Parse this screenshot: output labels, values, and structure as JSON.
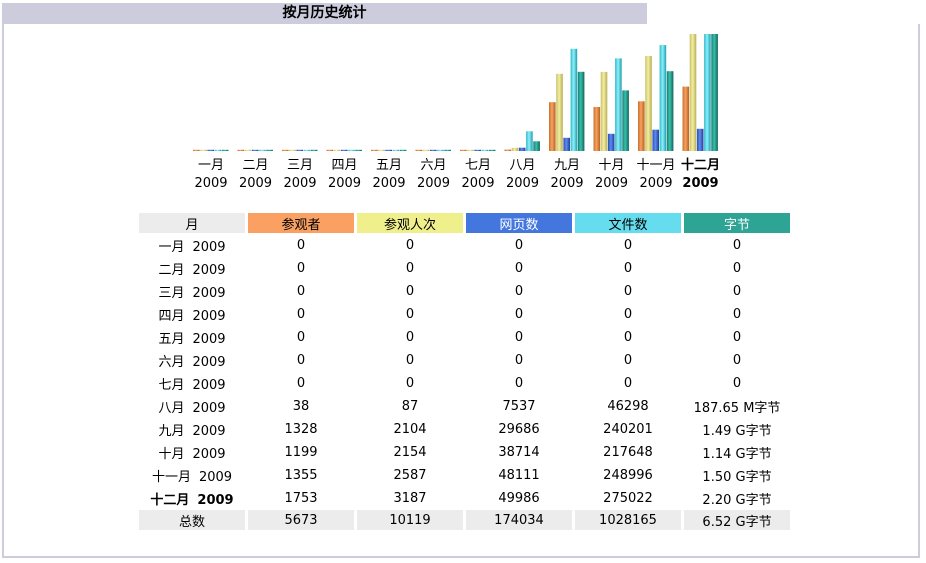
{
  "title": "按月历史统计",
  "colors": {
    "visitors": "#f9a062",
    "visits": "#eff08c",
    "pages": "#4477dd",
    "files": "#66ddee",
    "bytes": "#2ea495"
  },
  "table": {
    "headers": [
      "月",
      "参观者",
      "参观人次",
      "网页数",
      "文件数",
      "字节"
    ],
    "rows": [
      {
        "month": "一月",
        "year": "2009",
        "visitors": "0",
        "visits": "0",
        "pages": "0",
        "files": "0",
        "bytes": "0"
      },
      {
        "month": "二月",
        "year": "2009",
        "visitors": "0",
        "visits": "0",
        "pages": "0",
        "files": "0",
        "bytes": "0"
      },
      {
        "month": "三月",
        "year": "2009",
        "visitors": "0",
        "visits": "0",
        "pages": "0",
        "files": "0",
        "bytes": "0"
      },
      {
        "month": "四月",
        "year": "2009",
        "visitors": "0",
        "visits": "0",
        "pages": "0",
        "files": "0",
        "bytes": "0"
      },
      {
        "month": "五月",
        "year": "2009",
        "visitors": "0",
        "visits": "0",
        "pages": "0",
        "files": "0",
        "bytes": "0"
      },
      {
        "month": "六月",
        "year": "2009",
        "visitors": "0",
        "visits": "0",
        "pages": "0",
        "files": "0",
        "bytes": "0"
      },
      {
        "month": "七月",
        "year": "2009",
        "visitors": "0",
        "visits": "0",
        "pages": "0",
        "files": "0",
        "bytes": "0"
      },
      {
        "month": "八月",
        "year": "2009",
        "visitors": "38",
        "visits": "87",
        "pages": "7537",
        "files": "46298",
        "bytes": "187.65 M字节"
      },
      {
        "month": "九月",
        "year": "2009",
        "visitors": "1328",
        "visits": "2104",
        "pages": "29686",
        "files": "240201",
        "bytes": "1.49 G字节"
      },
      {
        "month": "十月",
        "year": "2009",
        "visitors": "1199",
        "visits": "2154",
        "pages": "38714",
        "files": "217648",
        "bytes": "1.14 G字节"
      },
      {
        "month": "十一月",
        "year": "2009",
        "visitors": "1355",
        "visits": "2587",
        "pages": "48111",
        "files": "248996",
        "bytes": "1.50 G字节"
      },
      {
        "month": "十二月",
        "year": "2009",
        "visitors": "1753",
        "visits": "3187",
        "pages": "49986",
        "files": "275022",
        "bytes": "2.20 G字节",
        "current": true
      }
    ],
    "total": {
      "label": "总数",
      "visitors": "5673",
      "visits": "10119",
      "pages": "174034",
      "files": "1028165",
      "bytes": "6.52 G字节"
    }
  },
  "chart_data": {
    "type": "bar",
    "categories": [
      "一月",
      "二月",
      "三月",
      "四月",
      "五月",
      "六月",
      "七月",
      "八月",
      "九月",
      "十月",
      "十一月",
      "十二月"
    ],
    "category_years": [
      "2009",
      "2009",
      "2009",
      "2009",
      "2009",
      "2009",
      "2009",
      "2009",
      "2009",
      "2009",
      "2009",
      "2009"
    ],
    "highlight_index": 11,
    "groups": [
      {
        "name": "visitors-visits-pages",
        "series": [
          {
            "name": "参观者",
            "key": "visitors",
            "values": [
              0,
              0,
              0,
              0,
              0,
              0,
              0,
              38,
              1328,
              1199,
              1355,
              1753
            ]
          },
          {
            "name": "参观人次",
            "key": "visits",
            "values": [
              0,
              0,
              0,
              0,
              0,
              0,
              0,
              87,
              2104,
              2154,
              2587,
              3187
            ]
          },
          {
            "name": "网页数",
            "key": "pages",
            "values": [
              0,
              0,
              0,
              0,
              0,
              0,
              0,
              7537,
              29686,
              38714,
              48111,
              49986
            ],
            "scale_max": 264000
          }
        ]
      },
      {
        "name": "files-bytes",
        "series": [
          {
            "name": "文件数",
            "key": "files",
            "values": [
              0,
              0,
              0,
              0,
              0,
              0,
              0,
              46298,
              240201,
              217648,
              248996,
              275022
            ]
          },
          {
            "name": "字节",
            "key": "bytes",
            "unit": "G字节",
            "values": [
              0,
              0,
              0,
              0,
              0,
              0,
              0,
              0.183,
              1.49,
              1.14,
              1.5,
              2.2
            ]
          }
        ]
      }
    ],
    "legend": "none",
    "grid": false
  }
}
